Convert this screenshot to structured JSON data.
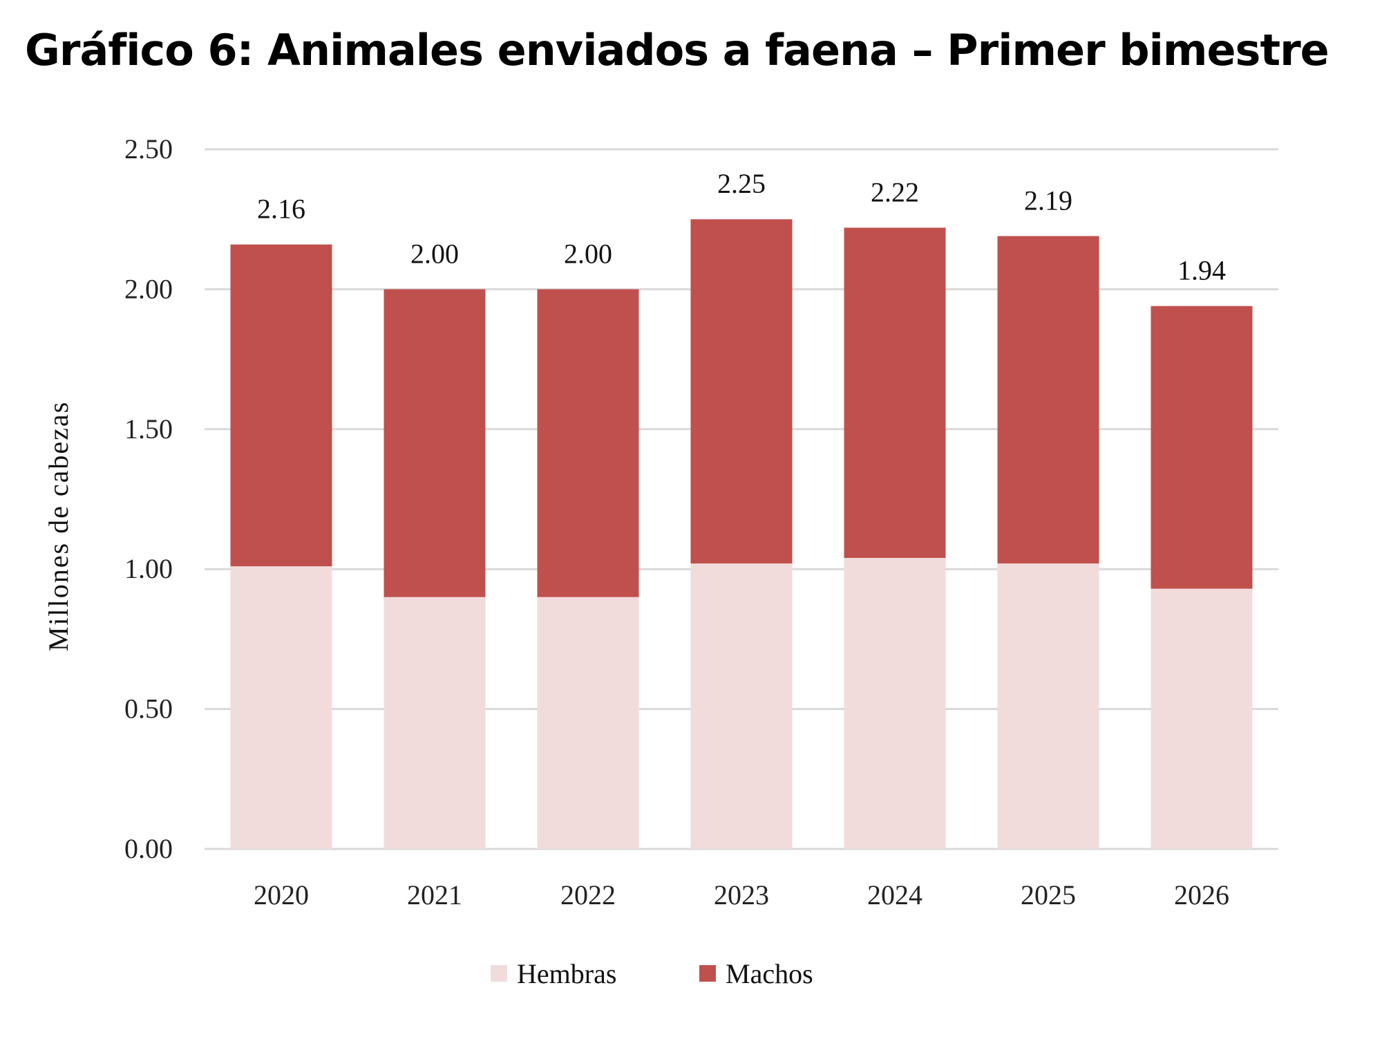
{
  "title": "Gráfico 6: Animales enviados a faena – Primer bimestre",
  "chart_data": {
    "type": "bar",
    "stacked": true,
    "categories": [
      "2020",
      "2021",
      "2022",
      "2023",
      "2024",
      "2025",
      "2026"
    ],
    "series": [
      {
        "name": "Hembras",
        "color": "#F2DCDB",
        "values": [
          1.01,
          0.9,
          0.9,
          1.02,
          1.04,
          1.02,
          0.93
        ]
      },
      {
        "name": "Machos",
        "color": "#C0504D",
        "values": [
          1.15,
          1.1,
          1.1,
          1.23,
          1.18,
          1.17,
          1.01
        ]
      }
    ],
    "totals": [
      "2.16",
      "2.00",
      "2.00",
      "2.25",
      "2.22",
      "2.19",
      "1.94"
    ],
    "ylabel": "Millones de cabezas",
    "xlabel": "",
    "ylim": [
      0,
      2.5
    ],
    "yticks": [
      "0.00",
      "0.50",
      "1.00",
      "1.50",
      "2.00",
      "2.50"
    ],
    "grid": true,
    "legend_position": "bottom"
  }
}
